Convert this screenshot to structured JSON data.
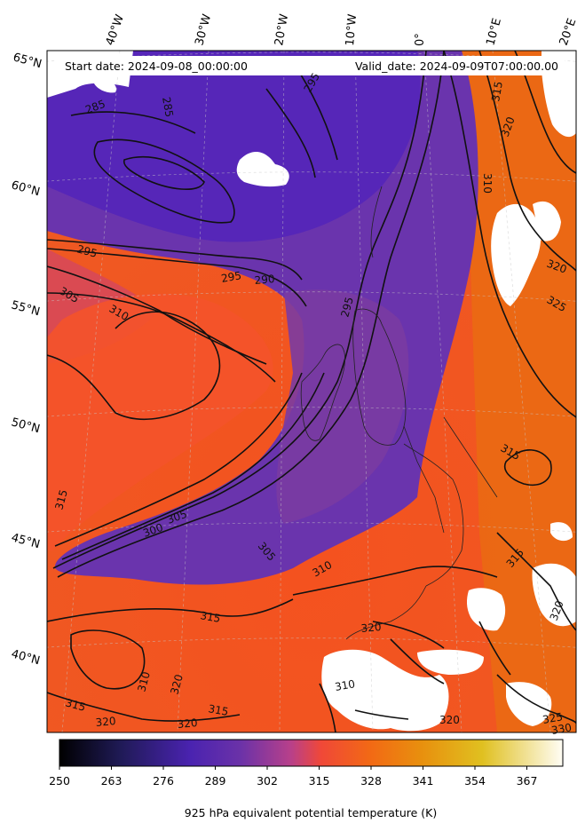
{
  "header": {
    "start_date": "Start date: 2024-09-08_00:00:00",
    "valid_date": "Valid_date: 2024-09-09T07:00:00.00"
  },
  "longitude_labels": [
    "40°W",
    "30°W",
    "20°W",
    "10°W",
    "0°",
    "10°E",
    "20°E"
  ],
  "latitude_labels": [
    "65°N",
    "60°N",
    "55°N",
    "50°N",
    "45°N",
    "40°N"
  ],
  "contour_labels": [
    "285",
    "285",
    "295",
    "290",
    "295",
    "305",
    "310",
    "295",
    "295",
    "300",
    "305",
    "315",
    "310",
    "315",
    "320",
    "315",
    "320",
    "315",
    "320",
    "320",
    "310",
    "315",
    "315",
    "320",
    "310",
    "320",
    "325",
    "315",
    "320",
    "320",
    "325",
    "330",
    "305",
    "310"
  ],
  "colorbar": {
    "title": "925 hPa equivalent potential temperature (K)",
    "ticks": [
      "250",
      "263",
      "276",
      "289",
      "302",
      "315",
      "328",
      "341",
      "354",
      "367"
    ],
    "range": [
      250,
      376
    ],
    "colormap": [
      "#000000",
      "#2b1f6e",
      "#4f23b5",
      "#7a3fa8",
      "#c8407a",
      "#f54a36",
      "#f27a10",
      "#e8a015",
      "#e8cc40",
      "#ffffff"
    ]
  },
  "colors": {
    "cold_air": "#5a2bb0",
    "warm_air": "#f2501e",
    "land_mask": "#ffffff",
    "contour_line": "#111111"
  }
}
